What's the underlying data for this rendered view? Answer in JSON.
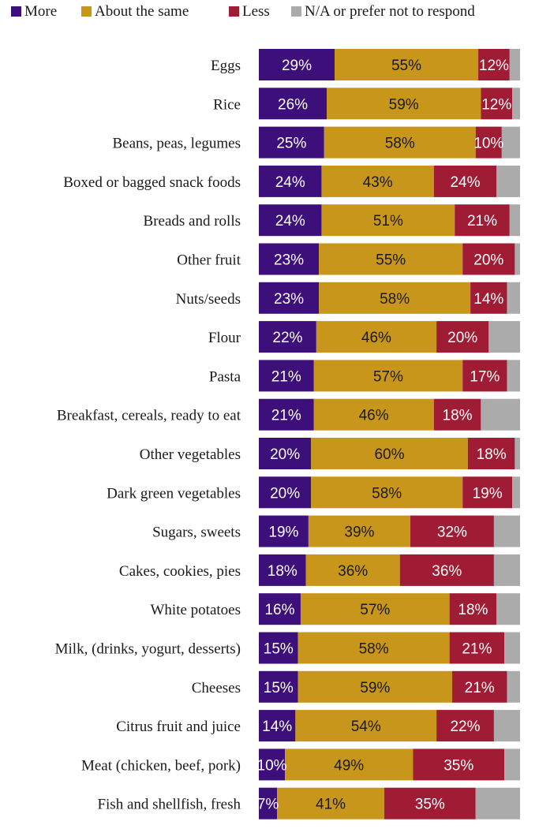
{
  "chart_data": {
    "type": "bar",
    "orientation": "horizontal",
    "stacked": true,
    "legend_position": "top",
    "grid": false,
    "xlim": [
      0,
      100
    ],
    "categories": [
      "Eggs",
      "Rice",
      "Beans, peas, legumes",
      "Boxed or bagged snack foods",
      "Breads and rolls",
      "Other fruit",
      "Nuts/seeds",
      "Flour",
      "Pasta",
      "Breakfast, cereals, ready to eat",
      "Other vegetables",
      "Dark green vegetables",
      "Sugars, sweets",
      "Cakes, cookies, pies",
      "White potatoes",
      "Milk, (drinks, yogurt, desserts)",
      "Cheeses",
      "Citrus fruit and juice",
      "Meat (chicken, beef, pork)",
      "Fish and shellfish, fresh"
    ],
    "series": [
      {
        "name": "More",
        "color": "#3d0f7a",
        "label_color": "#ffffff",
        "values": [
          29,
          26,
          25,
          24,
          24,
          23,
          23,
          22,
          21,
          21,
          20,
          20,
          19,
          18,
          16,
          15,
          15,
          14,
          10,
          7
        ]
      },
      {
        "name": "About the same",
        "color": "#c8961a",
        "label_color": "#1a1a1a",
        "values": [
          55,
          59,
          58,
          43,
          51,
          55,
          58,
          46,
          57,
          46,
          60,
          58,
          39,
          36,
          57,
          58,
          59,
          54,
          49,
          41
        ]
      },
      {
        "name": "Less",
        "color": "#a01c34",
        "label_color": "#ffffff",
        "values": [
          12,
          12,
          10,
          24,
          21,
          20,
          14,
          20,
          17,
          18,
          18,
          19,
          32,
          36,
          18,
          21,
          21,
          22,
          35,
          35
        ]
      },
      {
        "name": "N/A or prefer not to respond",
        "color": "#ababab",
        "label_color": "#1a1a1a",
        "values": [
          4,
          3,
          7,
          9,
          4,
          2,
          5,
          12,
          5,
          15,
          2,
          3,
          10,
          10,
          9,
          6,
          5,
          10,
          6,
          17
        ],
        "show_labels": false
      }
    ]
  }
}
